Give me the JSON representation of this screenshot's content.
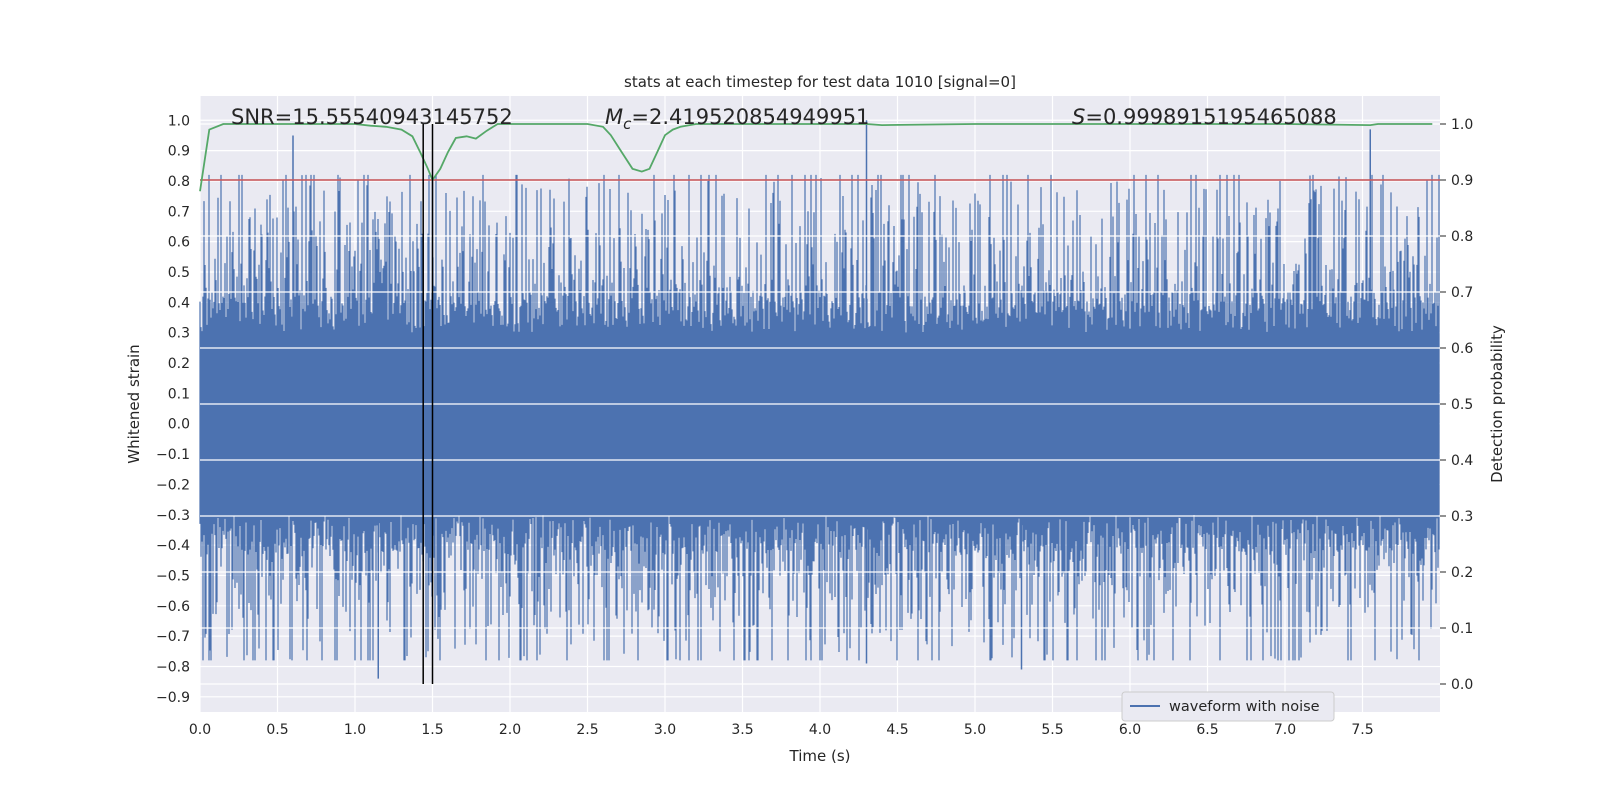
{
  "chart_data": {
    "type": "line",
    "title": "stats at each timestep for test data 1010 [signal=0]",
    "xlabel": "Time (s)",
    "ylabel": "Whitened strain",
    "ylabel_right": "Detection probability",
    "xlim": [
      0.0,
      8.0
    ],
    "ylim": [
      -0.95,
      1.08
    ],
    "ylim_right": [
      -0.05,
      1.05
    ],
    "x_ticks": [
      "0.0",
      "0.5",
      "1.0",
      "1.5",
      "2.0",
      "2.5",
      "3.0",
      "3.5",
      "4.0",
      "4.5",
      "5.0",
      "5.5",
      "6.0",
      "6.5",
      "7.0",
      "7.5"
    ],
    "y_ticks": [
      "1.0",
      "0.9",
      "0.8",
      "0.7",
      "0.6",
      "0.5",
      "0.4",
      "0.3",
      "0.2",
      "0.1",
      "0.0",
      "-0.1",
      "-0.2",
      "-0.3",
      "-0.4",
      "-0.5",
      "-0.6",
      "-0.7",
      "-0.8",
      "-0.9"
    ],
    "y_ticks_right": [
      "1.0",
      "0.9",
      "0.8",
      "0.7",
      "0.6",
      "0.5",
      "0.4",
      "0.3",
      "0.2",
      "0.1",
      "0.0"
    ],
    "grid": true,
    "legend_position": "lower-right",
    "annotations": {
      "snr": "SNR=15.55540943145752",
      "mc_symbol": "M",
      "mc_sub": "c",
      "mc_value": "=2.419520854949951",
      "s_symbol": "S",
      "s_value": "=0.9998915195465088"
    },
    "series": [
      {
        "name": "waveform with noise",
        "color": "#4c72b0",
        "axis": "left",
        "kind": "noise-waveform",
        "approx_core_amplitude": 0.3,
        "notable_peaks": [
          {
            "x": 0.6,
            "y": 0.95
          },
          {
            "x": 1.5,
            "y": 0.8
          },
          {
            "x": 1.15,
            "y": -0.84
          },
          {
            "x": 4.3,
            "y": 1.0
          },
          {
            "x": 4.3,
            "y": -0.79
          },
          {
            "x": 5.3,
            "y": -0.81
          },
          {
            "x": 7.55,
            "y": 0.97
          }
        ]
      },
      {
        "axis": "right",
        "color": "#55a868",
        "x": [
          0.0,
          0.06,
          0.15,
          0.3,
          0.6,
          1.0,
          1.1,
          1.2,
          1.3,
          1.37,
          1.42,
          1.47,
          1.5,
          1.55,
          1.6,
          1.65,
          1.72,
          1.78,
          1.85,
          1.92,
          2.0,
          2.3,
          2.5,
          2.6,
          2.65,
          2.72,
          2.79,
          2.85,
          2.9,
          2.95,
          3.0,
          3.05,
          3.1,
          3.2,
          3.5,
          4.3,
          4.4,
          5.0,
          6.0,
          7.0,
          7.55,
          7.6,
          7.95
        ],
        "y": [
          0.88,
          0.99,
          1.0,
          1.0,
          1.0,
          1.0,
          0.997,
          0.995,
          0.99,
          0.978,
          0.95,
          0.92,
          0.9,
          0.92,
          0.95,
          0.975,
          0.978,
          0.974,
          0.988,
          1.0,
          1.0,
          1.0,
          1.0,
          0.995,
          0.98,
          0.95,
          0.92,
          0.915,
          0.92,
          0.95,
          0.98,
          0.99,
          0.995,
          1.0,
          1.0,
          1.0,
          0.998,
          1.0,
          1.0,
          1.0,
          0.998,
          1.0,
          1.0
        ]
      },
      {
        "axis": "right",
        "color": "#c44e52",
        "kind": "threshold",
        "y": 0.9
      }
    ],
    "vlines": [
      1.44,
      1.5
    ],
    "vline_color": "#000000"
  }
}
